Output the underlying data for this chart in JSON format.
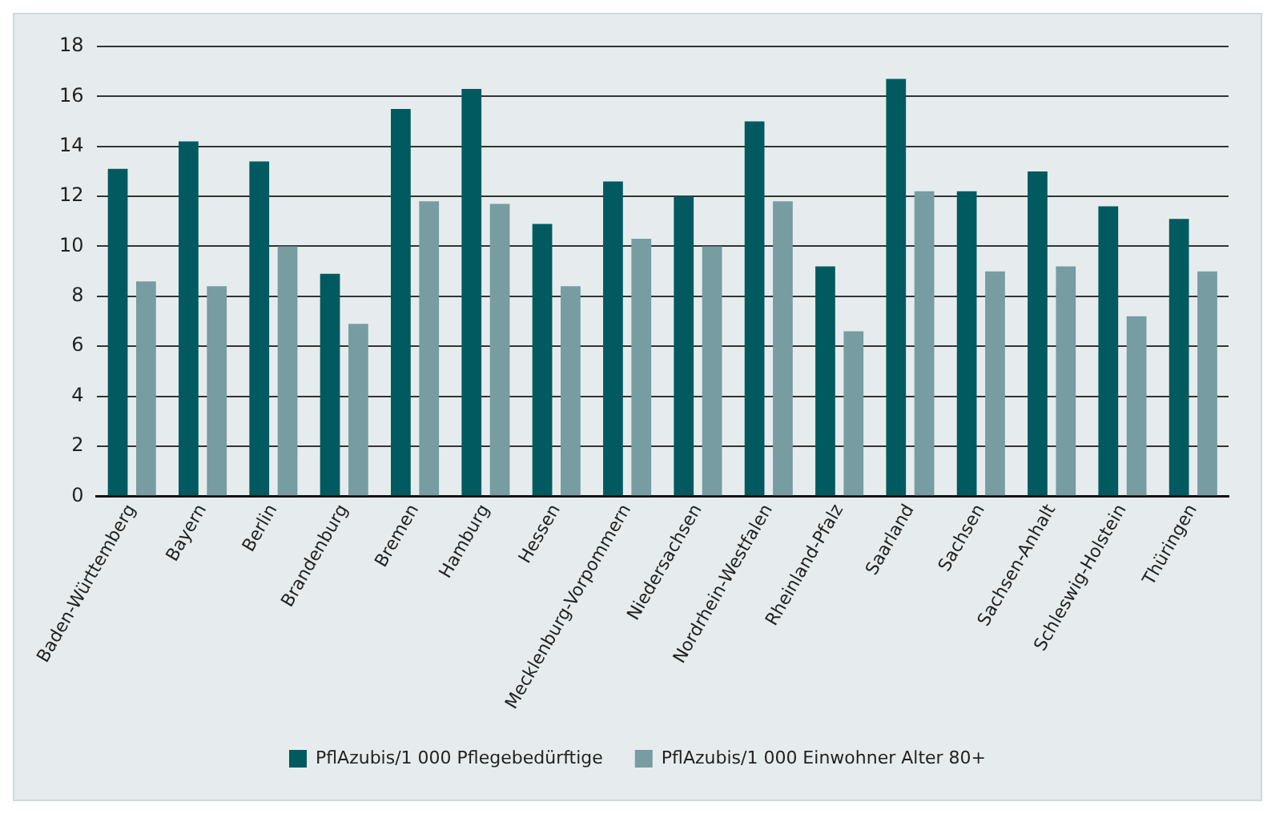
{
  "chart_data": {
    "type": "bar",
    "categories": [
      "Baden-Württemberg",
      "Bayern",
      "Berlin",
      "Brandenburg",
      "Bremen",
      "Hamburg",
      "Hessen",
      "Mecklenburg-Vorpommern",
      "Niedersachsen",
      "Nordrhein-Westfalen",
      "Rheinland-Pfalz",
      "Saarland",
      "Sachsen",
      "Sachsen-Anhalt",
      "Schleswig-Holstein",
      "Thüringen"
    ],
    "series": [
      {
        "name": "PflAzubis/1 000 Pflegebedürftige",
        "color": "#005a60",
        "values": [
          13.1,
          14.2,
          13.4,
          8.9,
          15.5,
          16.3,
          10.9,
          12.6,
          12.0,
          15.0,
          9.2,
          16.7,
          12.2,
          13.0,
          11.6,
          11.1
        ]
      },
      {
        "name": "PflAzubis/1 000 Einwohner Alter 80+",
        "color": "#779ca2",
        "values": [
          8.6,
          8.4,
          10.0,
          6.9,
          11.8,
          11.7,
          8.4,
          10.3,
          10.0,
          11.8,
          6.6,
          12.2,
          9.0,
          9.2,
          7.2,
          9.0
        ]
      }
    ],
    "ylim": [
      0,
      18
    ],
    "yticks": [
      0,
      2,
      4,
      6,
      8,
      10,
      12,
      14,
      16,
      18
    ],
    "grid": "y",
    "legend": "bottom"
  }
}
